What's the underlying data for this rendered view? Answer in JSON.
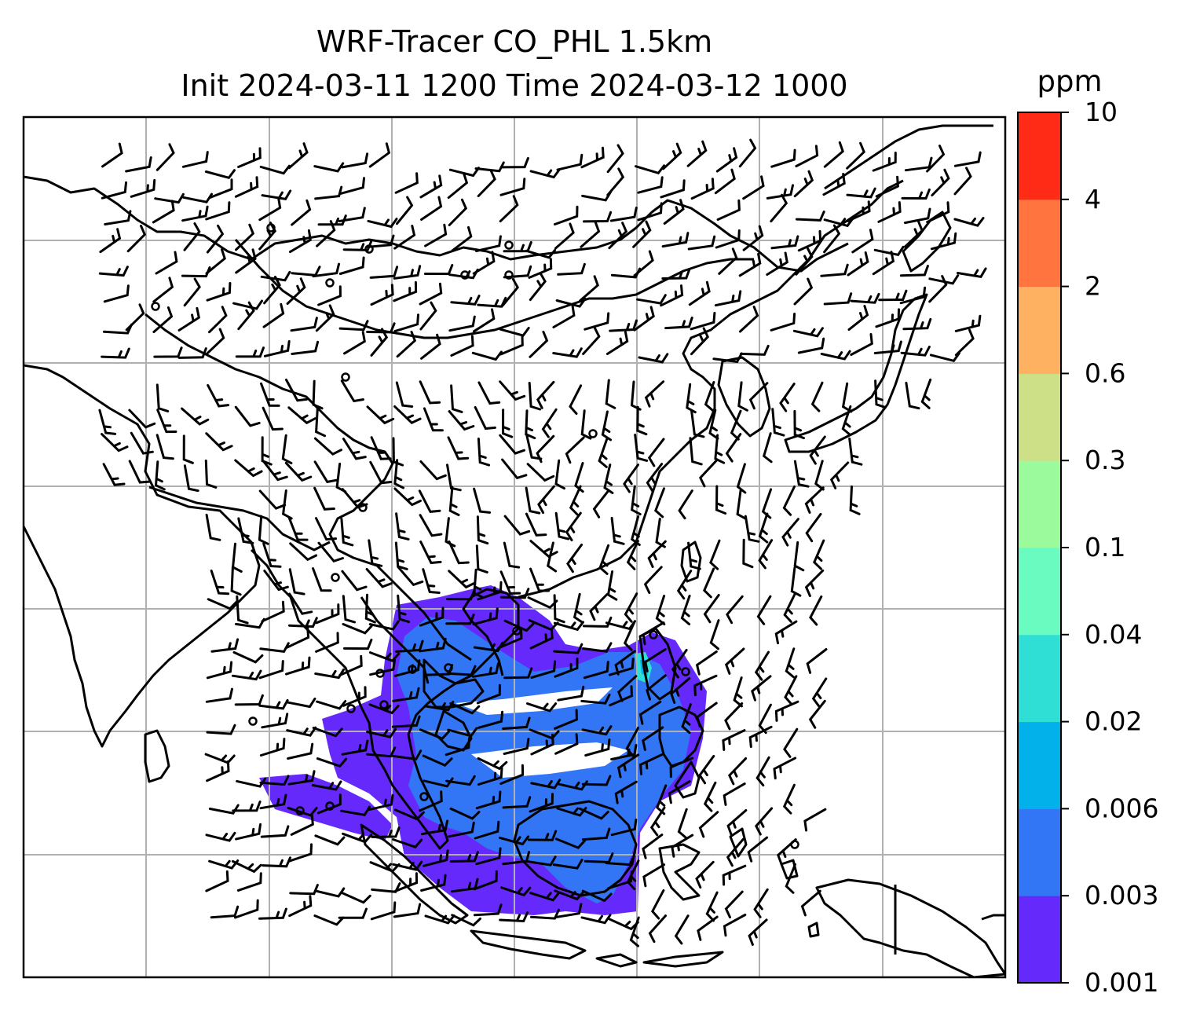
{
  "title_line1": "WRF-Tracer CO_PHL 1.5km",
  "title_line2": "Init 2024-03-11 1200 Time 2024-03-12 1000",
  "colorbar": {
    "units": "ppm",
    "levels": [
      "0.001",
      "0.003",
      "0.006",
      "0.02",
      "0.04",
      "0.1",
      "0.3",
      "0.6",
      "2",
      "4",
      "10"
    ],
    "colors": [
      "#6629fb",
      "#3276f6",
      "#02b1ea",
      "#2fdfd6",
      "#6afbc1",
      "#9afa9c",
      "#cde088",
      "#feb261",
      "#ff743f",
      "#ff2b17"
    ]
  },
  "map": {
    "gridlines": true,
    "features": [
      "coastlines",
      "country-borders",
      "wind-barbs",
      "tracer-fill"
    ],
    "tracer_range": "0.001-0.006 ppm"
  }
}
